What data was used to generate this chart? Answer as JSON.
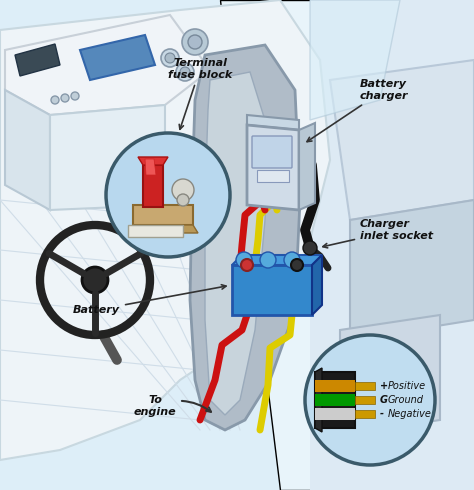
{
  "bg_color": "#e8f3f8",
  "labels": {
    "terminal_fuse_block": "Terminal\nfuse block",
    "battery_charger": "Battery\ncharger",
    "charger_inlet_socket": "Charger\ninlet socket",
    "battery": "Battery",
    "to_engine": "To\nengine"
  },
  "connector_pins": [
    {
      "symbol": "+",
      "text": "Positive",
      "wire_color": "#cc8800"
    },
    {
      "symbol": "G",
      "text": "Ground",
      "wire_color": "#009900"
    },
    {
      "symbol": "-",
      "text": "Negative",
      "wire_color": "#cccccc"
    }
  ],
  "wire_red": "#cc1111",
  "wire_yellow": "#ddcc00",
  "wire_black": "#111111",
  "fuse_circle_color": "#b8d8ee",
  "conn_circle_color": "#c0ddf0",
  "charger_body": "#b8c8d8",
  "battery_body": "#3388cc",
  "hull_light": "#ddeef8",
  "hull_mid": "#c4d8e4",
  "hull_dark": "#9aaabb",
  "console_white": "#eef4f8",
  "screen_blue": "#5588bb",
  "text_color": "#111111",
  "label_fontsize": 8.5,
  "annotation_fontsize": 8
}
